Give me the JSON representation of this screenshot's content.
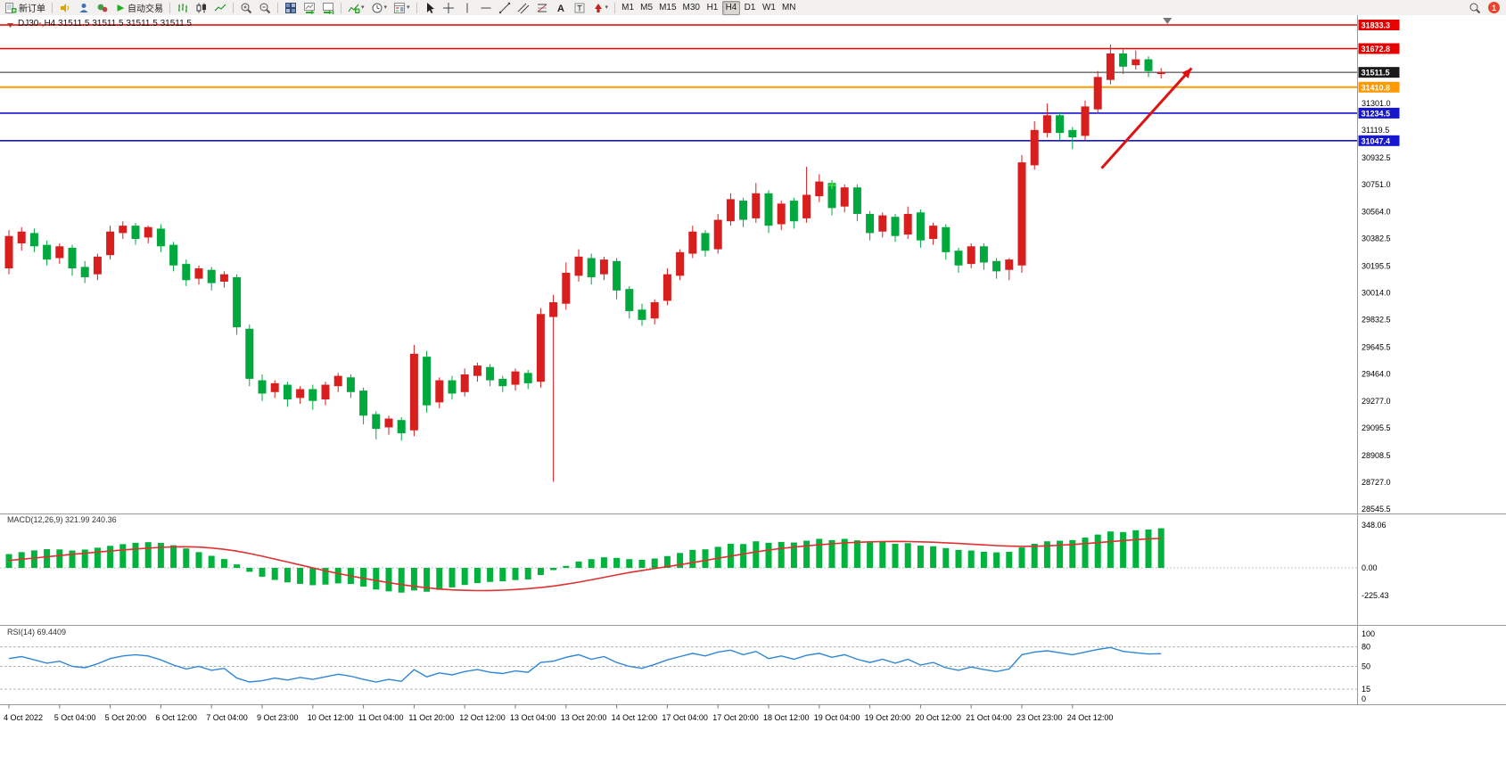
{
  "toolbar": {
    "new_order": {
      "label": "新订单"
    },
    "autotrading": {
      "label": "自动交易"
    },
    "timeframes": [
      {
        "label": "M1"
      },
      {
        "label": "M5"
      },
      {
        "label": "M15"
      },
      {
        "label": "M30"
      },
      {
        "label": "H1"
      },
      {
        "label": "H4",
        "active": true
      },
      {
        "label": "D1"
      },
      {
        "label": "W1"
      },
      {
        "label": "MN"
      }
    ],
    "notification": {
      "count": "1"
    }
  },
  "chart": {
    "symbol_ohlc_label": "DJ30-,H4 31511.5 31511.5 31511.5 31511.5",
    "macd_label": "MACD(12,26,9) 321.99 240.36",
    "rsi_label": "RSI(14) 69.4409"
  },
  "chart_data": [
    {
      "type": "candlestick",
      "title": "DJ30- H4",
      "up_color": "#d91e1e",
      "down_color": "#00a83e",
      "label_every": 4,
      "time_labels": [
        "4 Oct 2022",
        "5 Oct 04:00",
        "5 Oct 20:00",
        "6 Oct 12:00",
        "7 Oct 04:00",
        "9 Oct 23:00",
        "10 Oct 12:00",
        "11 Oct 04:00",
        "11 Oct 20:00",
        "12 Oct 12:00",
        "13 Oct 04:00",
        "13 Oct 20:00",
        "14 Oct 12:00",
        "17 Oct 04:00",
        "17 Oct 20:00",
        "18 Oct 12:00",
        "19 Oct 04:00",
        "19 Oct 20:00",
        "20 Oct 12:00",
        "21 Oct 04:00",
        "23 Oct 23:00",
        "24 Oct 12:00"
      ],
      "y_axis_ticks": [
        {
          "value": 31301.0,
          "label": "31301.0"
        },
        {
          "value": 31119.5,
          "label": "31119.5"
        },
        {
          "value": 30932.5,
          "label": "30932.5"
        },
        {
          "value": 30751.0,
          "label": "30751.0"
        },
        {
          "value": 30564.0,
          "label": "30564.0"
        },
        {
          "value": 30382.5,
          "label": "30382.5"
        },
        {
          "value": 30195.5,
          "label": "30195.5"
        },
        {
          "value": 30014.0,
          "label": "30014.0"
        },
        {
          "value": 29832.5,
          "label": "29832.5"
        },
        {
          "value": 29645.5,
          "label": "29645.5"
        },
        {
          "value": 29464.0,
          "label": "29464.0"
        },
        {
          "value": 29277.0,
          "label": "29277.0"
        },
        {
          "value": 29095.5,
          "label": "29095.5"
        },
        {
          "value": 28908.5,
          "label": "28908.5"
        },
        {
          "value": 28727.0,
          "label": "28727.0"
        },
        {
          "value": 28545.5,
          "label": "28545.5"
        }
      ],
      "price_lines": [
        {
          "value": 31833.3,
          "label": "31833.3",
          "color": "#e60000",
          "width": 1.4
        },
        {
          "value": 31672.8,
          "label": "31672.8",
          "color": "#e60000",
          "width": 1.4
        },
        {
          "value": 31511.5,
          "label": "31511.5",
          "color": "#2b2b2b",
          "width": 1,
          "badge": "#1a1a1a",
          "role": "current-price"
        },
        {
          "value": 31410.8,
          "label": "31410.8",
          "color": "#ff9900",
          "width": 2
        },
        {
          "value": 31234.5,
          "label": "31234.5",
          "color": "#1616cf",
          "width": 1.6
        },
        {
          "value": 31047.4,
          "label": "31047.4",
          "color": "#1616cf",
          "width": 1.6
        }
      ],
      "ohlc": [
        [
          30180,
          30440,
          30140,
          30400
        ],
        [
          30350,
          30460,
          30300,
          30430
        ],
        [
          30420,
          30450,
          30290,
          30330
        ],
        [
          30340,
          30370,
          30200,
          30240
        ],
        [
          30250,
          30350,
          30210,
          30330
        ],
        [
          30320,
          30340,
          30130,
          30180
        ],
        [
          30190,
          30230,
          30080,
          30120
        ],
        [
          30140,
          30280,
          30100,
          30260
        ],
        [
          30270,
          30470,
          30240,
          30430
        ],
        [
          30420,
          30500,
          30380,
          30470
        ],
        [
          30470,
          30490,
          30340,
          30380
        ],
        [
          30390,
          30470,
          30350,
          30460
        ],
        [
          30450,
          30480,
          30290,
          30330
        ],
        [
          30340,
          30360,
          30160,
          30200
        ],
        [
          30210,
          30240,
          30060,
          30100
        ],
        [
          30110,
          30200,
          30070,
          30180
        ],
        [
          30170,
          30190,
          30030,
          30080
        ],
        [
          30090,
          30160,
          30050,
          30140
        ],
        [
          30120,
          30140,
          29730,
          29780
        ],
        [
          29770,
          29800,
          29380,
          29430
        ],
        [
          29420,
          29460,
          29280,
          29330
        ],
        [
          29340,
          29420,
          29300,
          29400
        ],
        [
          29390,
          29410,
          29240,
          29290
        ],
        [
          29300,
          29380,
          29260,
          29360
        ],
        [
          29360,
          29390,
          29220,
          29280
        ],
        [
          29290,
          29410,
          29250,
          29390
        ],
        [
          29380,
          29470,
          29340,
          29450
        ],
        [
          29440,
          29460,
          29300,
          29340
        ],
        [
          29350,
          29370,
          29120,
          29180
        ],
        [
          29190,
          29210,
          29020,
          29090
        ],
        [
          29100,
          29180,
          29050,
          29160
        ],
        [
          29150,
          29170,
          29010,
          29060
        ],
        [
          29080,
          29660,
          29040,
          29600
        ],
        [
          29580,
          29620,
          29200,
          29250
        ],
        [
          29270,
          29440,
          29230,
          29420
        ],
        [
          29420,
          29450,
          29290,
          29330
        ],
        [
          29340,
          29500,
          29310,
          29460
        ],
        [
          29450,
          29540,
          29410,
          29520
        ],
        [
          29510,
          29530,
          29380,
          29420
        ],
        [
          29430,
          29450,
          29340,
          29380
        ],
        [
          29390,
          29500,
          29350,
          29480
        ],
        [
          29470,
          29490,
          29360,
          29400
        ],
        [
          29410,
          29910,
          29370,
          29870
        ],
        [
          29850,
          30000,
          28730,
          29950
        ],
        [
          29940,
          30220,
          29900,
          30150
        ],
        [
          30130,
          30310,
          30090,
          30260
        ],
        [
          30250,
          30280,
          30070,
          30120
        ],
        [
          30140,
          30260,
          30100,
          30240
        ],
        [
          30230,
          30250,
          29970,
          30030
        ],
        [
          30040,
          30060,
          29840,
          29890
        ],
        [
          29900,
          29940,
          29790,
          29830
        ],
        [
          29840,
          29970,
          29800,
          29950
        ],
        [
          29960,
          30180,
          29930,
          30140
        ],
        [
          30130,
          30310,
          30100,
          30290
        ],
        [
          30280,
          30470,
          30250,
          30430
        ],
        [
          30420,
          30440,
          30260,
          30300
        ],
        [
          30310,
          30550,
          30280,
          30510
        ],
        [
          30500,
          30690,
          30470,
          30650
        ],
        [
          30640,
          30660,
          30460,
          30510
        ],
        [
          30520,
          30760,
          30490,
          30690
        ],
        [
          30690,
          30710,
          30420,
          30470
        ],
        [
          30480,
          30640,
          30440,
          30620
        ],
        [
          30640,
          30660,
          30450,
          30500
        ],
        [
          30520,
          30870,
          30490,
          30680
        ],
        [
          30670,
          30820,
          30630,
          30770
        ],
        [
          30760,
          30780,
          30540,
          30590
        ],
        [
          30600,
          30750,
          30560,
          30730
        ],
        [
          30730,
          30750,
          30500,
          30550
        ],
        [
          30550,
          30570,
          30370,
          30420
        ],
        [
          30430,
          30560,
          30390,
          30540
        ],
        [
          30530,
          30550,
          30360,
          30400
        ],
        [
          30410,
          30600,
          30380,
          30550
        ],
        [
          30560,
          30580,
          30320,
          30370
        ],
        [
          30380,
          30490,
          30340,
          30470
        ],
        [
          30460,
          30480,
          30240,
          30290
        ],
        [
          30300,
          30320,
          30150,
          30200
        ],
        [
          30210,
          30350,
          30180,
          30330
        ],
        [
          30330,
          30350,
          30170,
          30220
        ],
        [
          30230,
          30250,
          30110,
          30160
        ],
        [
          30170,
          30250,
          30100,
          30240
        ],
        [
          30200,
          30950,
          30150,
          30900
        ],
        [
          30880,
          31180,
          30850,
          31120
        ],
        [
          31100,
          31300,
          31070,
          31220
        ],
        [
          31220,
          31240,
          31050,
          31100
        ],
        [
          31120,
          31140,
          30990,
          31070
        ],
        [
          31080,
          31320,
          31050,
          31280
        ],
        [
          31260,
          31520,
          31230,
          31480
        ],
        [
          31460,
          31700,
          31430,
          31640
        ],
        [
          31640,
          31670,
          31500,
          31550
        ],
        [
          31560,
          31660,
          31530,
          31600
        ],
        [
          31600,
          31620,
          31480,
          31520
        ],
        [
          31500,
          31540,
          31470,
          31511.5
        ]
      ],
      "annotations": [
        {
          "type": "arrow",
          "color": "#e01111",
          "from_bar": 86.3,
          "from_price": 30860,
          "to_bar": 93.4,
          "to_price": 31540
        },
        {
          "type": "plus-marker",
          "color": "#44dd44",
          "bar": 65,
          "price": 30745
        },
        {
          "type": "shift-marker",
          "bar": 91.5
        }
      ]
    },
    {
      "type": "bar",
      "name": "MACD(12,26,9)",
      "last_values": [
        321.99,
        240.36
      ],
      "bar_color": "#00b33c",
      "signal_color": "#e03131",
      "axis_labels": [
        {
          "value": 348.06,
          "label": "348.06"
        },
        {
          "value": 0,
          "label": "0.00"
        },
        {
          "value": -225.43,
          "label": "-225.43"
        }
      ],
      "values": [
        112,
        128,
        142,
        152,
        150,
        141,
        149,
        164,
        179,
        193,
        204,
        209,
        203,
        184,
        158,
        128,
        98,
        72,
        28,
        -32,
        -72,
        -98,
        -118,
        -130,
        -141,
        -136,
        -126,
        -131,
        -152,
        -176,
        -191,
        -201,
        -184,
        -194,
        -179,
        -159,
        -139,
        -124,
        -114,
        -109,
        -99,
        -94,
        -58,
        -18,
        16,
        52,
        71,
        86,
        81,
        71,
        66,
        76,
        96,
        121,
        146,
        151,
        171,
        196,
        194,
        216,
        204,
        211,
        206,
        221,
        236,
        226,
        236,
        224,
        206,
        216,
        196,
        201,
        181,
        176,
        161,
        146,
        141,
        131,
        126,
        131,
        166,
        196,
        216,
        221,
        226,
        246,
        271,
        296,
        291,
        306,
        312,
        322
      ],
      "signal": [
        60,
        70,
        80,
        90,
        100,
        110,
        119,
        128,
        137,
        146,
        154,
        161,
        167,
        171,
        172,
        169,
        162,
        151,
        136,
        117,
        95,
        72,
        48,
        24,
        0,
        -24,
        -46,
        -66,
        -85,
        -103,
        -120,
        -136,
        -150,
        -162,
        -172,
        -179,
        -183,
        -185,
        -184,
        -181,
        -176,
        -169,
        -160,
        -148,
        -133,
        -116,
        -97,
        -77,
        -57,
        -38,
        -21,
        -5,
        10,
        26,
        43,
        60,
        78,
        96,
        113,
        130,
        145,
        158,
        169,
        179,
        188,
        196,
        203,
        208,
        212,
        214,
        215,
        214,
        212,
        209,
        204,
        199,
        193,
        187,
        181,
        177,
        175,
        176,
        179,
        184,
        190,
        197,
        205,
        213,
        222,
        230,
        236,
        240
      ]
    },
    {
      "type": "line",
      "name": "RSI(14)",
      "last_value": 69.4409,
      "line_color": "#2f86d6",
      "levels": [
        {
          "value": 100,
          "label": "100"
        },
        {
          "value": 80,
          "label": "80"
        },
        {
          "value": 50,
          "label": "50"
        },
        {
          "value": 15,
          "label": "15"
        },
        {
          "value": 0,
          "label": "0"
        }
      ],
      "values": [
        62,
        65,
        60,
        55,
        58,
        50,
        48,
        54,
        62,
        66,
        68,
        66,
        60,
        52,
        46,
        50,
        44,
        47,
        32,
        26,
        28,
        32,
        29,
        33,
        30,
        34,
        38,
        35,
        30,
        26,
        30,
        27,
        45,
        34,
        40,
        37,
        42,
        45,
        41,
        39,
        43,
        41,
        56,
        58,
        64,
        68,
        61,
        65,
        56,
        50,
        47,
        53,
        60,
        65,
        70,
        66,
        72,
        75,
        68,
        73,
        62,
        66,
        61,
        67,
        70,
        64,
        68,
        61,
        56,
        61,
        55,
        61,
        52,
        56,
        48,
        44,
        49,
        45,
        42,
        46,
        68,
        72,
        74,
        71,
        68,
        72,
        76,
        79,
        73,
        71,
        69,
        69.44
      ]
    }
  ]
}
